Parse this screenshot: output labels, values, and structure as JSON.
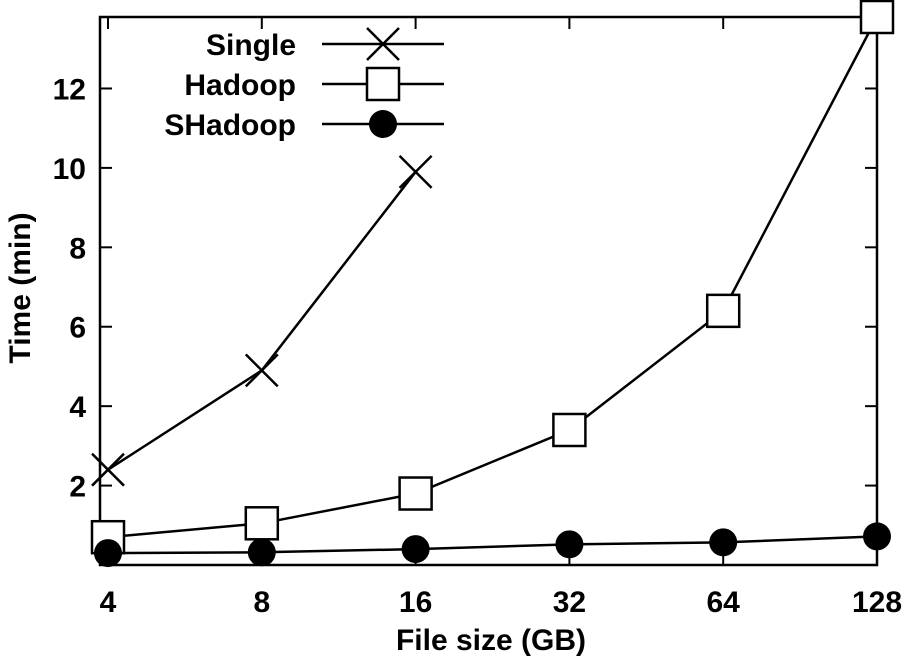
{
  "chart_data": {
    "type": "line",
    "xlabel": "File size (GB)",
    "ylabel": "Time (min)",
    "categories": [
      "4",
      "8",
      "16",
      "32",
      "64",
      "128"
    ],
    "ylim": [
      0,
      13.8
    ],
    "yticks": [
      2,
      4,
      6,
      8,
      10,
      12
    ],
    "grid": false,
    "legend_position": "top-left",
    "series": [
      {
        "name": "Single",
        "marker": "cross",
        "values": [
          2.4,
          4.9,
          9.9,
          null,
          null,
          null
        ]
      },
      {
        "name": "Hadoop",
        "marker": "open-square",
        "values": [
          0.7,
          1.05,
          1.8,
          3.4,
          6.4,
          13.8
        ]
      },
      {
        "name": "SHadoop",
        "marker": "filled-circle",
        "values": [
          0.3,
          0.32,
          0.4,
          0.52,
          0.57,
          0.72
        ]
      }
    ],
    "colors": {
      "line": "#000000",
      "background": "#ffffff"
    }
  }
}
